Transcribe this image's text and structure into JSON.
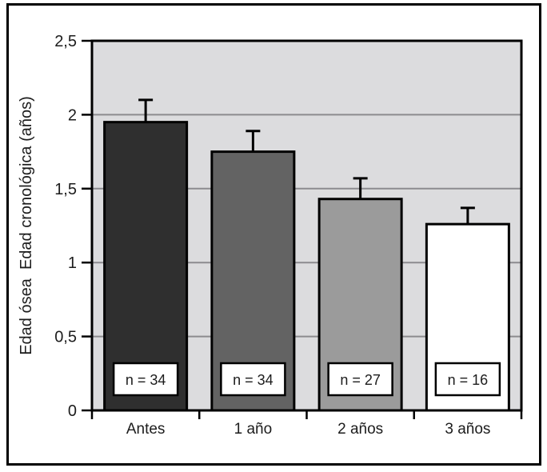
{
  "chart_data": {
    "type": "bar",
    "categories": [
      "Antes",
      "1 año",
      "2 años",
      "3 años"
    ],
    "values": [
      1.95,
      1.75,
      1.43,
      1.26
    ],
    "errors_upper": [
      0.15,
      0.14,
      0.14,
      0.11
    ],
    "n_labels": [
      "n = 34",
      "n = 34",
      "n = 27",
      "n = 16"
    ],
    "bar_colors": [
      "#2f2f2f",
      "#636363",
      "#9b9b9b",
      "#ffffff"
    ],
    "bar_border_color": "#000000",
    "error_bar_color": "#000000",
    "title": "",
    "xlabel": "",
    "ylabel": "Edad ósea  Edad cronológica (años)",
    "ylim": [
      0,
      2.5
    ],
    "yticks": [
      {
        "value": 0,
        "label": "0"
      },
      {
        "value": 0.5,
        "label": "0,5"
      },
      {
        "value": 1,
        "label": "1"
      },
      {
        "value": 1.5,
        "label": "1,5"
      },
      {
        "value": 2,
        "label": "2"
      },
      {
        "value": 2.5,
        "label": "2,5"
      }
    ],
    "grid": true,
    "gridline_color": "#8c8b8f",
    "plot_bg": "#dcdcde",
    "outer_bg": "#ffffff",
    "frame_color": "#000000",
    "text_color": "#1c1c1c",
    "legend": "none"
  }
}
